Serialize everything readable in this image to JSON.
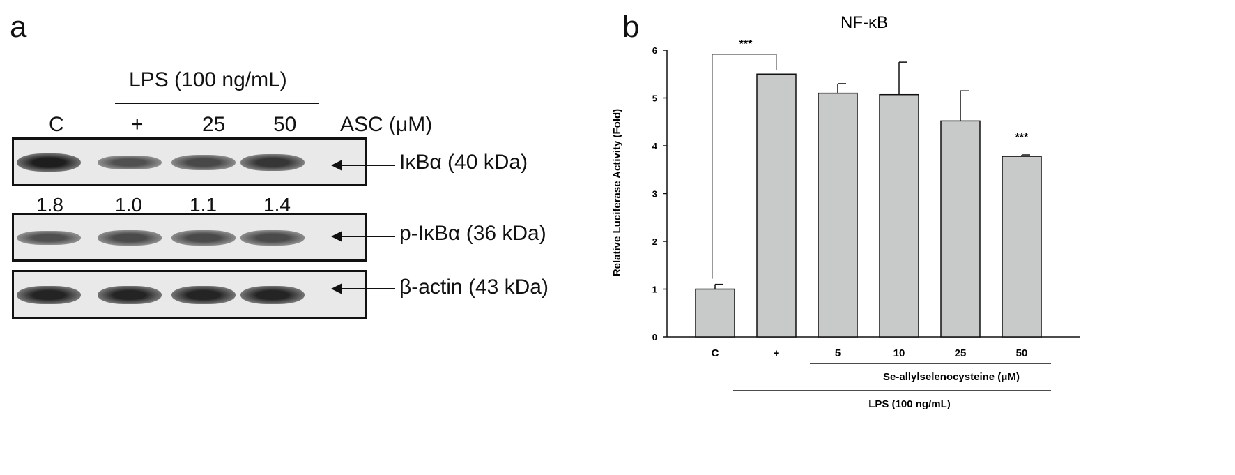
{
  "panel_a": {
    "letter": "a",
    "lps_label": "LPS (100 ng/mL)",
    "lanes": [
      "C",
      "+",
      "25",
      "50"
    ],
    "asc_label": "ASC (μM)",
    "quant": [
      "1.8",
      "1.0",
      "1.1",
      "1.4"
    ],
    "blots": [
      {
        "label": "IκBα (40 kDa)",
        "intensity": [
          1.0,
          0.55,
          0.62,
          0.78
        ]
      },
      {
        "label": "p-IκBα (36 kDa)",
        "intensity": [
          0.55,
          0.6,
          0.6,
          0.6
        ]
      },
      {
        "label": "β-actin (43 kDa)",
        "intensity": [
          0.95,
          0.95,
          0.95,
          0.95
        ]
      }
    ]
  },
  "panel_b": {
    "letter": "b",
    "chart_data": {
      "type": "bar",
      "title": "NF-κB",
      "ylabel": "Relative Luciferase Activity (Fold)",
      "xlabel": "",
      "categories": [
        "C",
        "+",
        "5",
        "10",
        "25",
        "50"
      ],
      "values": [
        1.0,
        5.5,
        5.1,
        5.07,
        4.52,
        3.78
      ],
      "errors": [
        0.1,
        0.0,
        0.2,
        0.68,
        0.63,
        0.03
      ],
      "ylim": [
        0,
        6
      ],
      "yticks": [
        "0",
        "1",
        "2",
        "3",
        "4",
        "5",
        "6"
      ],
      "significance": {
        "bracket": "***",
        "bar_50": "***"
      },
      "group_labels": {
        "asc": "Se-allylselenocysteine (μM)",
        "lps": "LPS (100 ng/mL)"
      },
      "bar_color": "#c8c9c9"
    }
  }
}
